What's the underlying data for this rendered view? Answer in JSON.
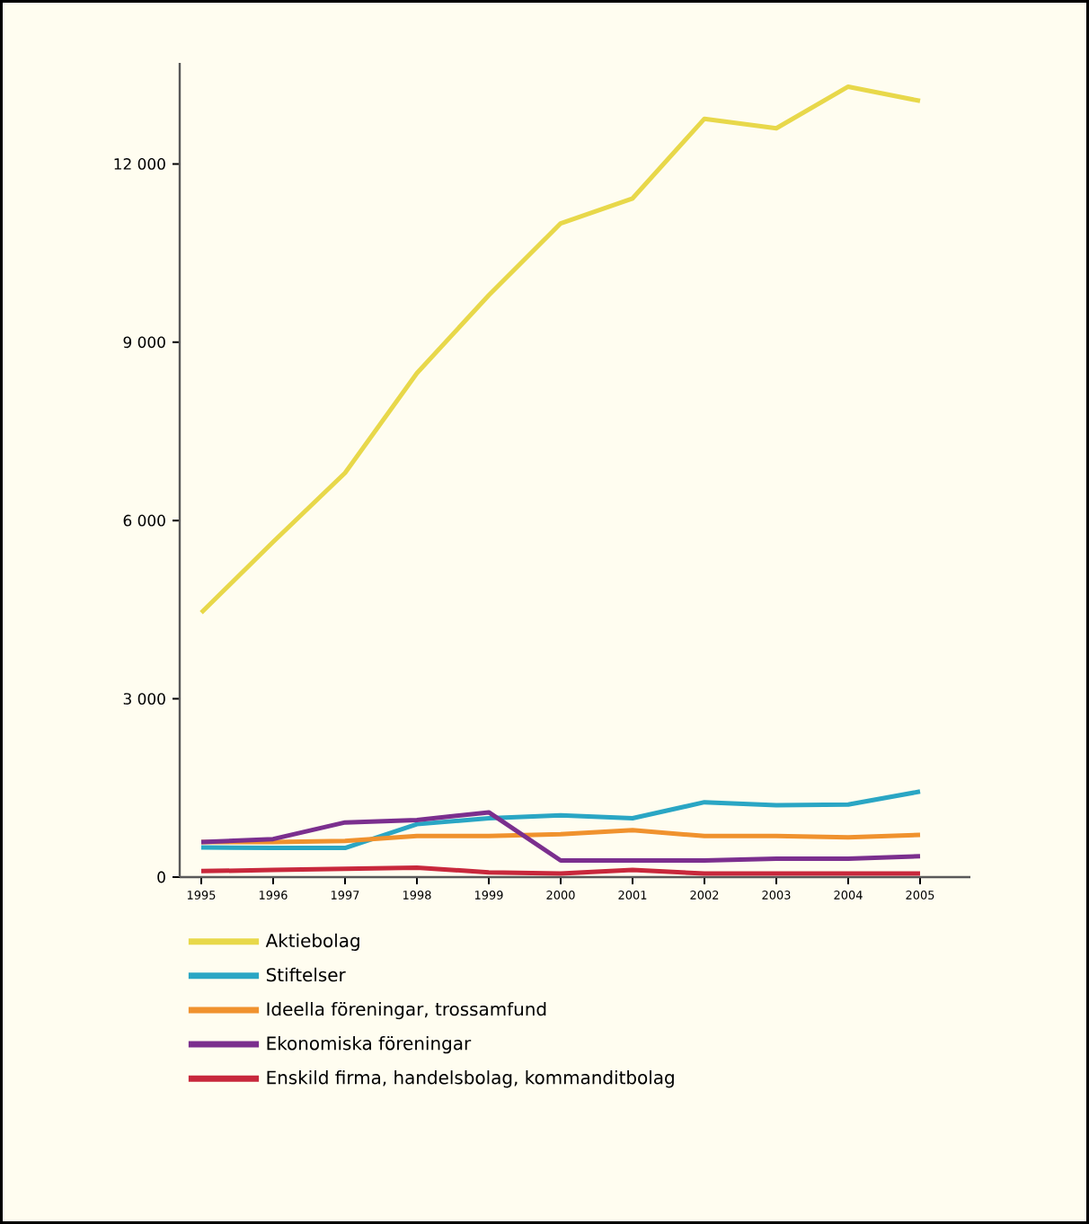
{
  "chart_data": {
    "type": "line",
    "x": [
      1995,
      1996,
      1997,
      1998,
      1999,
      2000,
      2001,
      2002,
      2003,
      2004,
      2005
    ],
    "series": [
      {
        "name": "Aktiebolag",
        "color": "#e8d84a",
        "values": [
          4450,
          5640,
          6800,
          8480,
          9790,
          11000,
          11420,
          12760,
          12600,
          13300,
          13060
        ]
      },
      {
        "name": "Stiftelser",
        "color": "#2aa6c4",
        "values": [
          500,
          490,
          490,
          890,
          990,
          1040,
          990,
          1260,
          1210,
          1220,
          1440
        ]
      },
      {
        "name": "Ideella föreningar, trossamfund",
        "color": "#f0922e",
        "values": [
          590,
          590,
          610,
          690,
          690,
          720,
          790,
          690,
          690,
          670,
          710
        ]
      },
      {
        "name": "Ekonomiska föreningar",
        "color": "#7b2f8e",
        "values": [
          590,
          640,
          920,
          960,
          1090,
          280,
          280,
          280,
          310,
          310,
          350
        ]
      },
      {
        "name": "Enskild firma, handelsbolag, kommanditbolag",
        "color": "#c8283c",
        "values": [
          100,
          120,
          140,
          160,
          80,
          60,
          120,
          60,
          60,
          60,
          60
        ]
      }
    ],
    "xlim": [
      1994.7,
      2005.7
    ],
    "xticks": [
      1995,
      1996,
      1997,
      1998,
      1999,
      2000,
      2001,
      2002,
      2003,
      2004,
      2005
    ],
    "ylim": [
      0,
      13700
    ],
    "yticks": [
      0,
      {
        "value": 3000,
        "label": "3 000"
      },
      {
        "value": 6000,
        "label": "6 000"
      },
      {
        "value": 9000,
        "label": "9 000"
      },
      {
        "value": 12000,
        "label": "12 000"
      }
    ],
    "grid": false,
    "legend": "bottom",
    "marker": "none",
    "line_style": "solid"
  }
}
